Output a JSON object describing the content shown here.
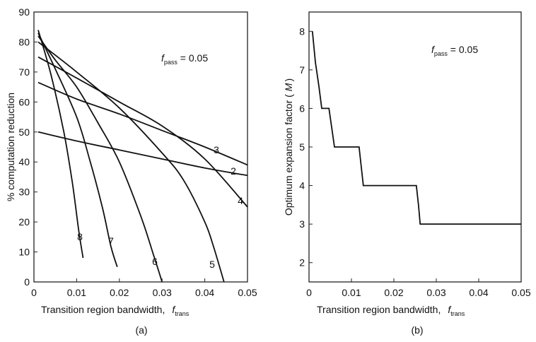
{
  "chart_data": [
    {
      "type": "line",
      "panel": "(a)",
      "xlabel": "Transition region bandwidth,",
      "xlabel_var": "f",
      "xlabel_sub": "trans",
      "ylabel": "% computation reduction",
      "annotation_var": "f",
      "annotation_sub": "pass",
      "annotation_value": " = 0.05",
      "xlim": [
        0,
        0.05
      ],
      "ylim": [
        0,
        90
      ],
      "x_ticks": [
        "0",
        "0.01",
        "0.02",
        "0.03",
        "0.04",
        "0.05"
      ],
      "y_ticks": [
        "0",
        "10",
        "20",
        "30",
        "40",
        "50",
        "60",
        "70",
        "80",
        "90"
      ],
      "series": [
        {
          "name": "2",
          "x": [
            0.001,
            0.01,
            0.02,
            0.03,
            0.04,
            0.05
          ],
          "y": [
            50,
            47,
            44,
            41,
            38,
            35.5
          ]
        },
        {
          "name": "3",
          "x": [
            0.001,
            0.01,
            0.02,
            0.03,
            0.04,
            0.05
          ],
          "y": [
            66.5,
            61,
            56,
            50.5,
            45,
            39
          ]
        },
        {
          "name": "4",
          "x": [
            0.001,
            0.01,
            0.02,
            0.03,
            0.04,
            0.05
          ],
          "y": [
            75,
            68,
            60,
            52,
            41,
            25
          ]
        },
        {
          "name": "5",
          "x": [
            0.001,
            0.01,
            0.02,
            0.03,
            0.035,
            0.04,
            0.042,
            0.0445
          ],
          "y": [
            80,
            70,
            58,
            43,
            34,
            20,
            12,
            0
          ]
        },
        {
          "name": "6",
          "x": [
            0.001,
            0.005,
            0.01,
            0.015,
            0.02,
            0.025,
            0.028,
            0.03
          ],
          "y": [
            82,
            74,
            65,
            53,
            40,
            22,
            9,
            0
          ]
        },
        {
          "name": "7",
          "x": [
            0.001,
            0.005,
            0.01,
            0.013,
            0.016,
            0.018,
            0.0195
          ],
          "y": [
            83,
            71,
            55,
            41,
            25,
            12,
            5
          ]
        },
        {
          "name": "8",
          "x": [
            0.001,
            0.004,
            0.007,
            0.009,
            0.0105,
            0.0115
          ],
          "y": [
            84,
            69,
            50,
            33,
            17,
            8
          ]
        }
      ]
    },
    {
      "type": "line",
      "panel": "(b)",
      "xlabel": "Transition region bandwidth,",
      "xlabel_var": "f",
      "xlabel_sub": "trans",
      "ylabel": "Optimum expansion factor (",
      "ylabel_var": "M",
      "ylabel_close": ")",
      "annotation_var": "f",
      "annotation_sub": "pass",
      "annotation_value": " = 0.05",
      "xlim": [
        0,
        0.05
      ],
      "ylim": [
        1.5,
        8.5
      ],
      "x_ticks": [
        "0",
        "0.01",
        "0.02",
        "0.03",
        "0.04",
        "0.05"
      ],
      "y_ticks": [
        "2",
        "3",
        "4",
        "5",
        "6",
        "7",
        "8"
      ],
      "series": [
        {
          "name": "",
          "x": [
            0.0008,
            0.0008,
            0.0015,
            0.0023,
            0.003,
            0.0032,
            0.0047,
            0.006,
            0.0118,
            0.0123,
            0.0128,
            0.0253,
            0.0258,
            0.0262,
            0.05
          ],
          "y": [
            8,
            8,
            7.2,
            6.6,
            6,
            6,
            6,
            5,
            5,
            4.5,
            4,
            4,
            3.5,
            3,
            3
          ]
        }
      ]
    }
  ]
}
